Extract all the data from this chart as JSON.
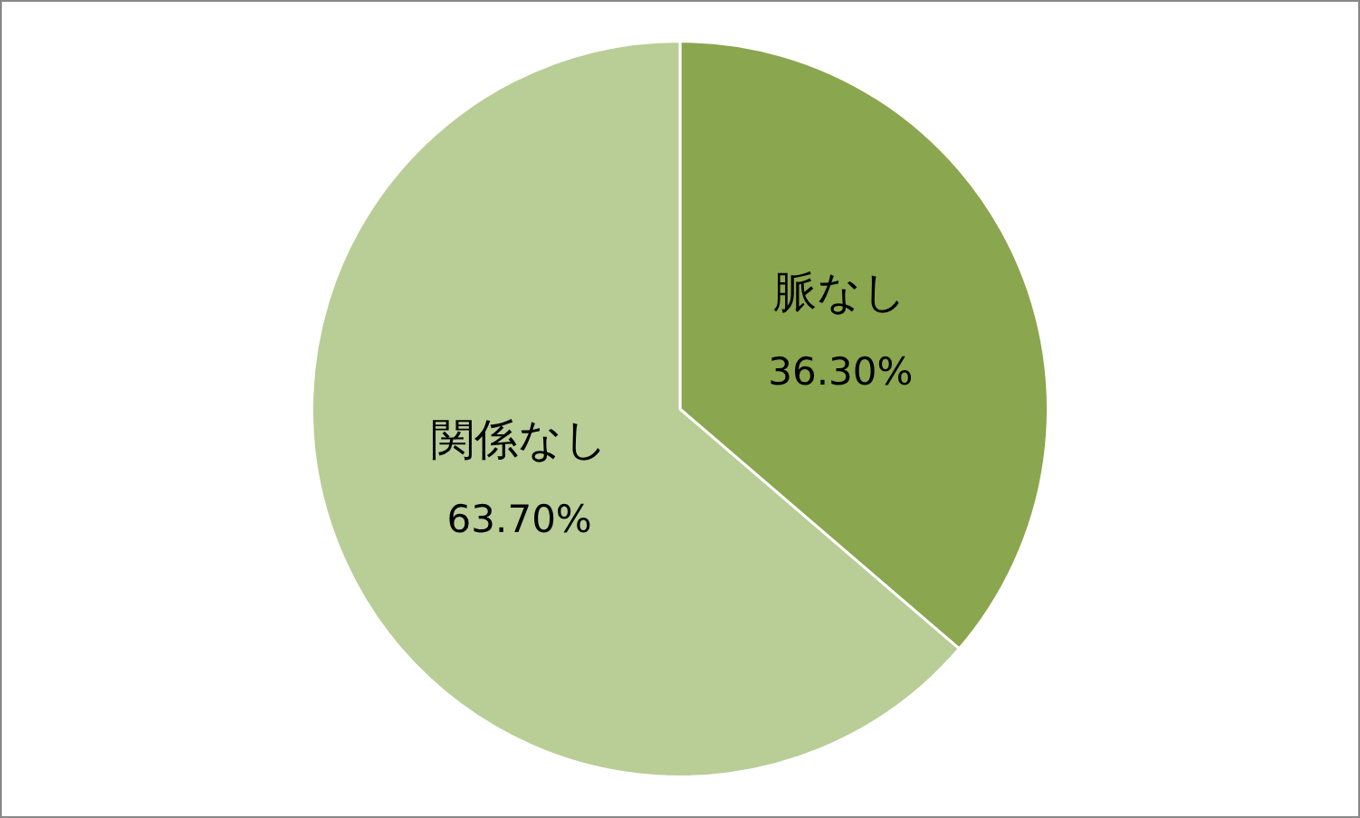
{
  "chart_data": {
    "type": "pie",
    "categories": [
      "脈なし",
      "関係なし"
    ],
    "values": [
      36.3,
      63.7
    ],
    "colors": [
      "#8aa64e",
      "#b9cd96"
    ],
    "value_labels": [
      "36.30%",
      "63.70%"
    ],
    "legend": false
  }
}
